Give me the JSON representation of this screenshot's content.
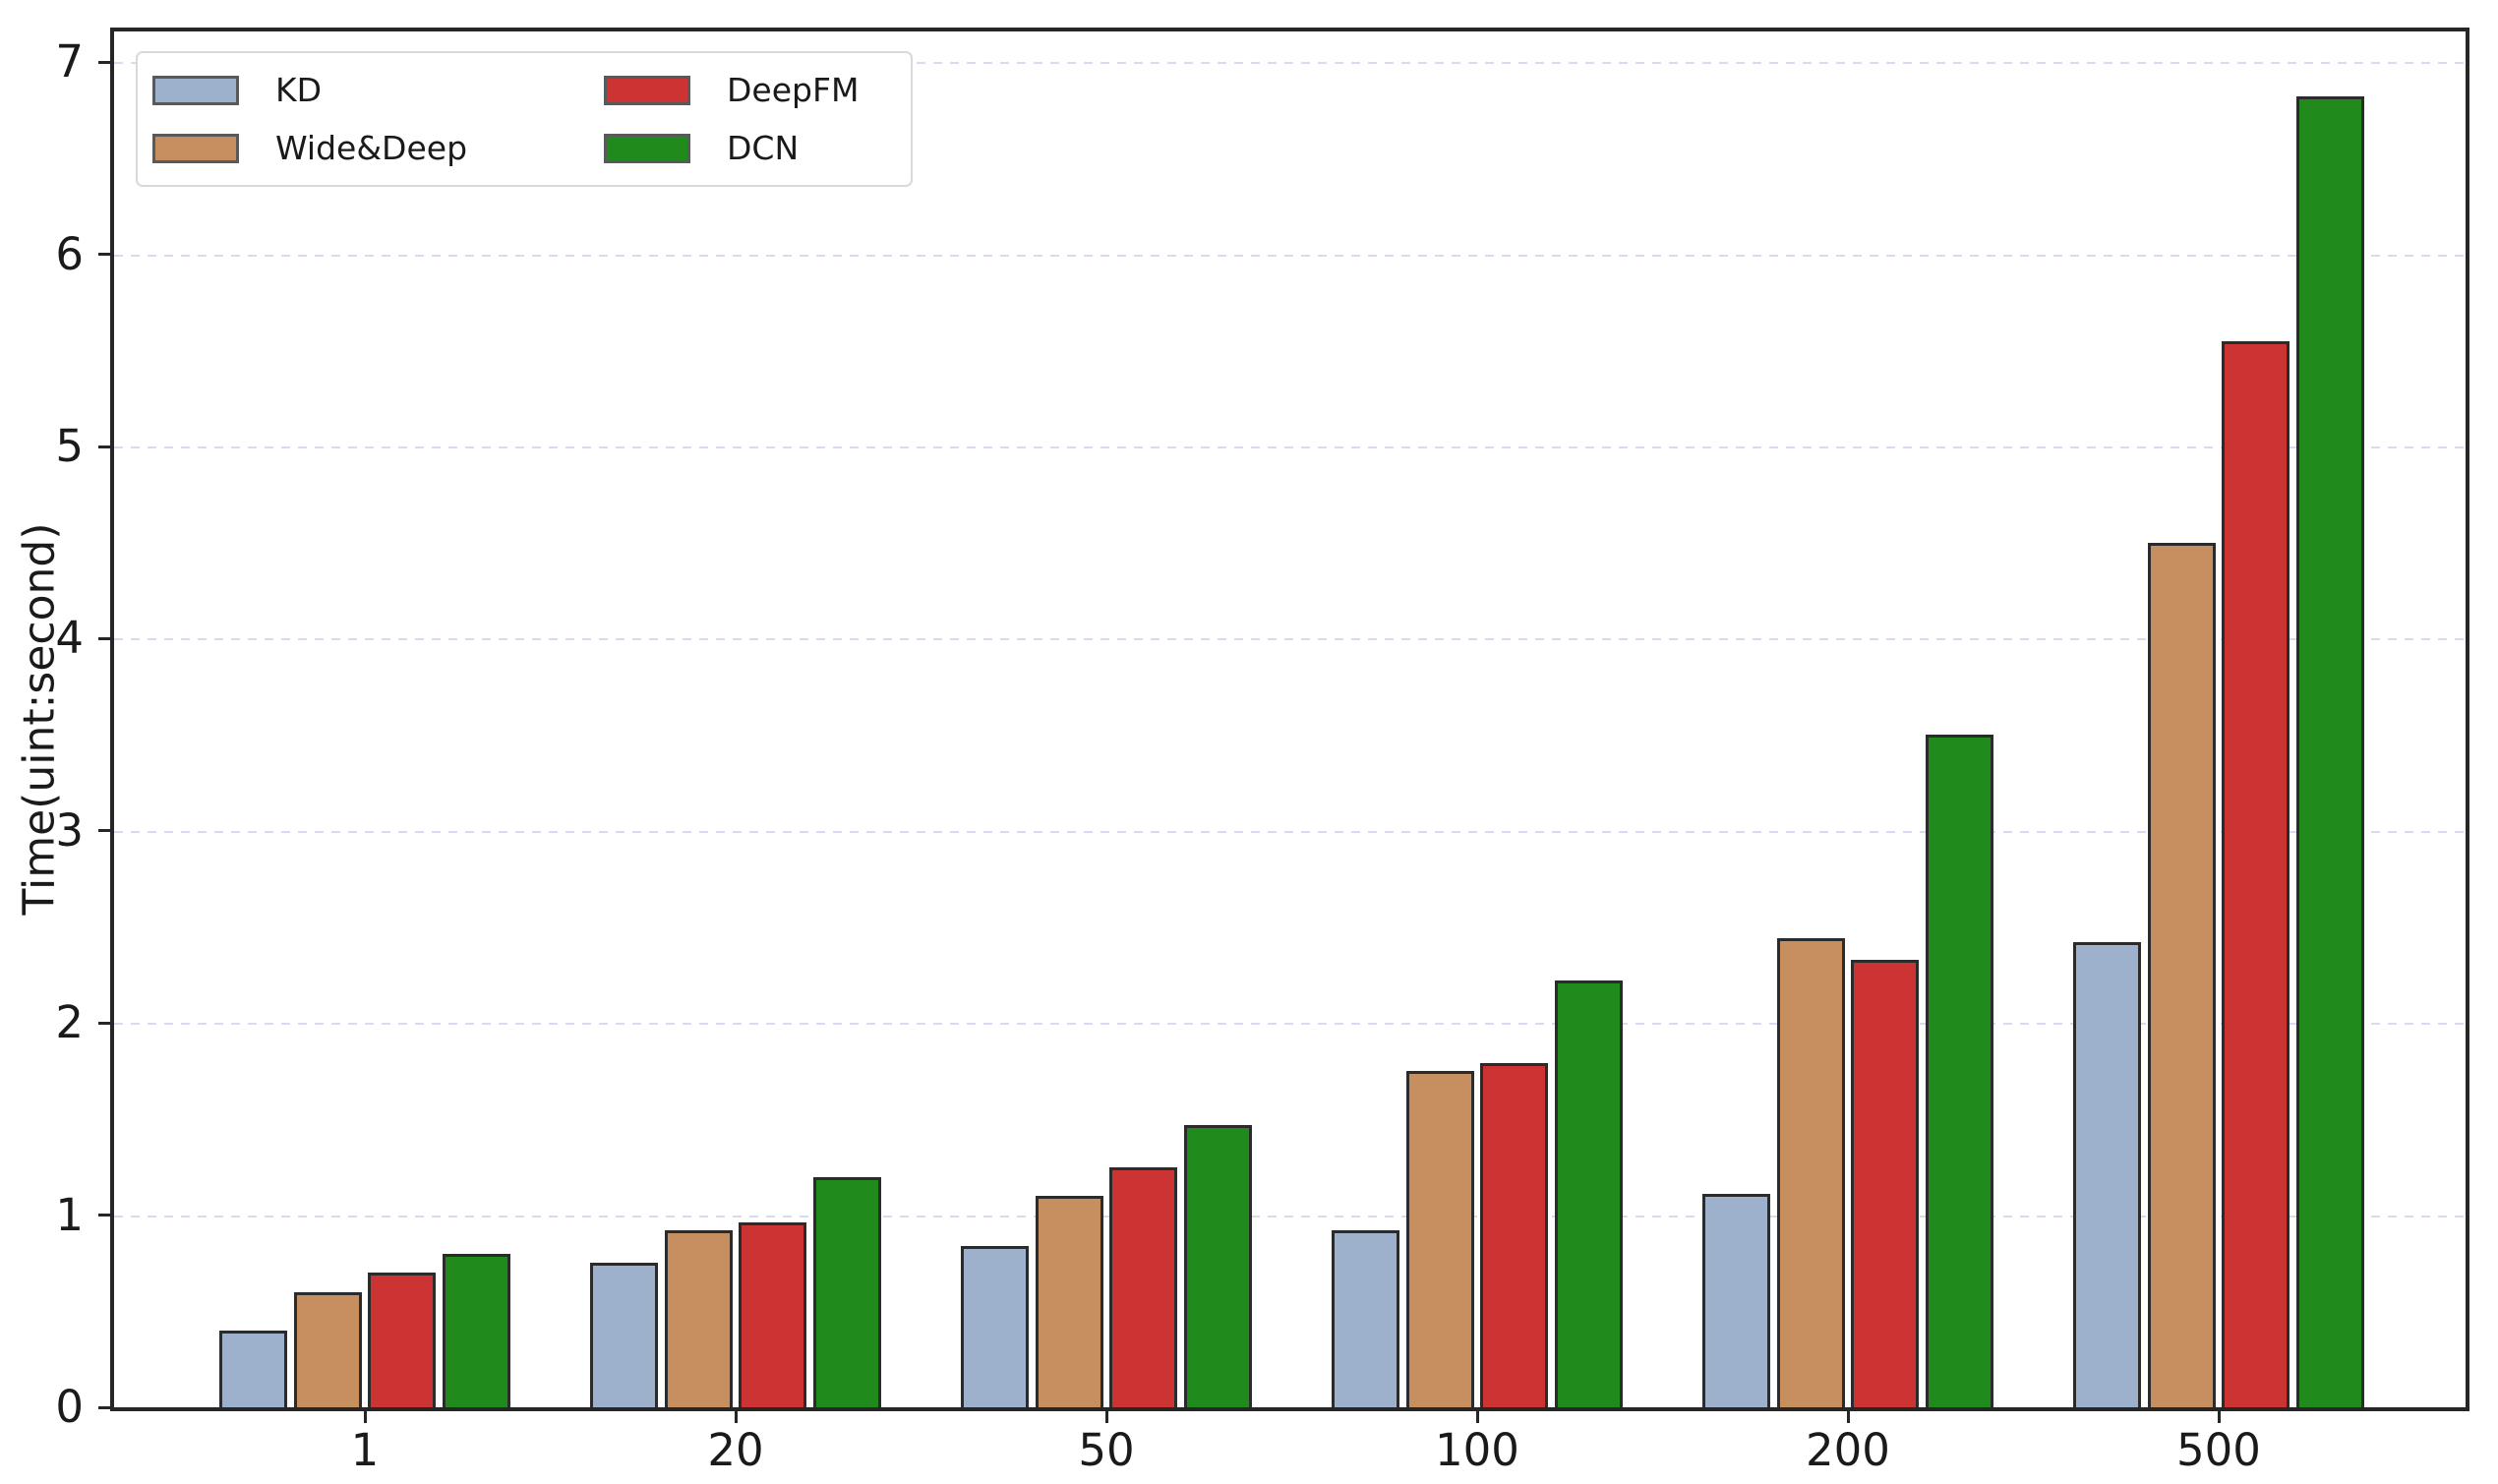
{
  "chart_data": {
    "type": "bar",
    "title": "",
    "xlabel": "",
    "ylabel": "Time(uint:second)",
    "categories": [
      "1",
      "20",
      "50",
      "100",
      "200",
      "500"
    ],
    "series": [
      {
        "name": "KD",
        "color": "#9db1cd",
        "values": [
          0.4,
          0.75,
          0.84,
          0.92,
          1.11,
          2.42
        ]
      },
      {
        "name": "Wide&Deep",
        "color": "#c78e5f",
        "values": [
          0.6,
          0.92,
          1.1,
          1.75,
          2.44,
          4.5
        ]
      },
      {
        "name": "DeepFM",
        "color": "#cb3433",
        "values": [
          0.7,
          0.96,
          1.25,
          1.79,
          2.33,
          5.55
        ]
      },
      {
        "name": "DCN",
        "color": "#218a1d",
        "values": [
          0.8,
          1.2,
          1.47,
          2.22,
          3.5,
          6.82
        ]
      }
    ],
    "yticks": [
      0,
      1,
      2,
      3,
      4,
      5,
      6,
      7
    ],
    "ylim": [
      0,
      7.16
    ],
    "grid": "horizontal-dashed",
    "grid_color": "#d9daf0",
    "bar_edge_color": "#2b2b2b",
    "spine_color": "#262626",
    "legend_position": "upper-left",
    "legend_columns": 2
  }
}
